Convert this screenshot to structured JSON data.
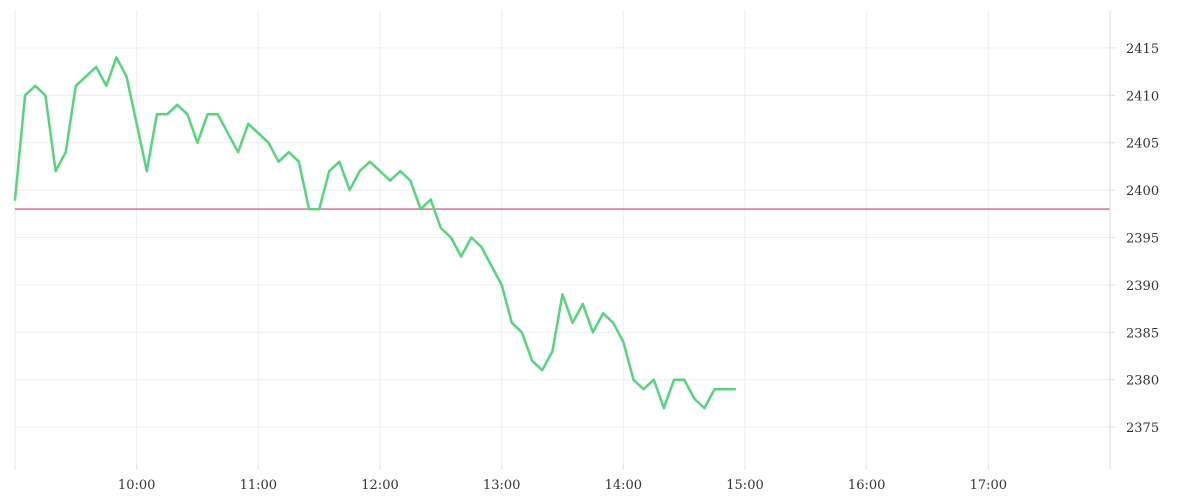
{
  "chart_data": {
    "type": "line",
    "title": "",
    "xlabel": "",
    "ylabel": "",
    "x_tick_labels": [
      "10:00",
      "11:00",
      "12:00",
      "13:00",
      "14:00",
      "15:00",
      "16:00",
      "17:00"
    ],
    "y_ticks": [
      2375,
      2380,
      2385,
      2390,
      2395,
      2400,
      2405,
      2410,
      2415
    ],
    "xlim": [
      "09:00",
      "18:00"
    ],
    "ylim": [
      2371,
      2419
    ],
    "grid": true,
    "reference_line": {
      "value": 2398,
      "color": "#d04060"
    },
    "series": [
      {
        "color": "#55d67c",
        "points": [
          [
            "09:00",
            2399
          ],
          [
            "09:05",
            2410
          ],
          [
            "09:10",
            2411
          ],
          [
            "09:15",
            2410
          ],
          [
            "09:20",
            2402
          ],
          [
            "09:25",
            2404
          ],
          [
            "09:30",
            2411
          ],
          [
            "09:35",
            2412
          ],
          [
            "09:40",
            2413
          ],
          [
            "09:45",
            2411
          ],
          [
            "09:50",
            2414
          ],
          [
            "09:55",
            2412
          ],
          [
            "10:00",
            2407
          ],
          [
            "10:05",
            2402
          ],
          [
            "10:10",
            2408
          ],
          [
            "10:15",
            2408
          ],
          [
            "10:20",
            2409
          ],
          [
            "10:25",
            2408
          ],
          [
            "10:30",
            2405
          ],
          [
            "10:35",
            2408
          ],
          [
            "10:40",
            2408
          ],
          [
            "10:45",
            2406
          ],
          [
            "10:50",
            2404
          ],
          [
            "10:55",
            2407
          ],
          [
            "11:00",
            2406
          ],
          [
            "11:05",
            2405
          ],
          [
            "11:10",
            2403
          ],
          [
            "11:15",
            2404
          ],
          [
            "11:20",
            2403
          ],
          [
            "11:25",
            2398
          ],
          [
            "11:30",
            2398
          ],
          [
            "11:35",
            2402
          ],
          [
            "11:40",
            2403
          ],
          [
            "11:45",
            2400
          ],
          [
            "11:50",
            2402
          ],
          [
            "11:55",
            2403
          ],
          [
            "12:00",
            2402
          ],
          [
            "12:05",
            2401
          ],
          [
            "12:10",
            2402
          ],
          [
            "12:15",
            2401
          ],
          [
            "12:20",
            2398
          ],
          [
            "12:25",
            2399
          ],
          [
            "12:30",
            2396
          ],
          [
            "12:35",
            2395
          ],
          [
            "12:40",
            2393
          ],
          [
            "12:45",
            2395
          ],
          [
            "12:50",
            2394
          ],
          [
            "12:55",
            2392
          ],
          [
            "13:00",
            2390
          ],
          [
            "13:05",
            2386
          ],
          [
            "13:10",
            2385
          ],
          [
            "13:15",
            2382
          ],
          [
            "13:20",
            2381
          ],
          [
            "13:25",
            2383
          ],
          [
            "13:30",
            2389
          ],
          [
            "13:35",
            2386
          ],
          [
            "13:40",
            2388
          ],
          [
            "13:45",
            2385
          ],
          [
            "13:50",
            2387
          ],
          [
            "13:55",
            2386
          ],
          [
            "14:00",
            2384
          ],
          [
            "14:05",
            2380
          ],
          [
            "14:10",
            2379
          ],
          [
            "14:15",
            2380
          ],
          [
            "14:20",
            2377
          ],
          [
            "14:25",
            2380
          ],
          [
            "14:30",
            2380
          ],
          [
            "14:35",
            2378
          ],
          [
            "14:40",
            2377
          ],
          [
            "14:45",
            2379
          ],
          [
            "14:50",
            2379
          ],
          [
            "14:55",
            2379
          ]
        ]
      }
    ]
  }
}
